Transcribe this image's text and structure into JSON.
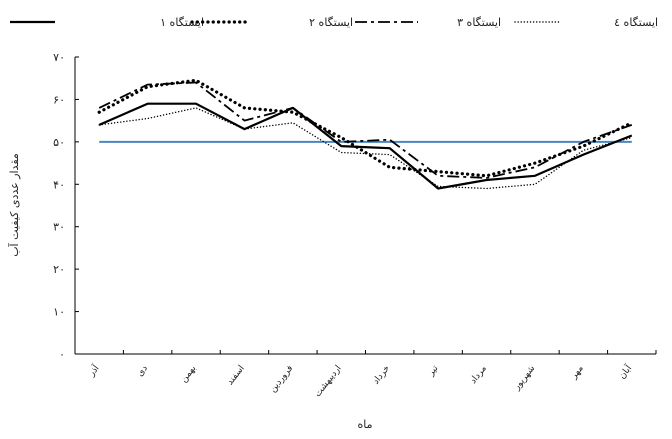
{
  "chart_data": {
    "type": "line",
    "xlabel": "ماه",
    "ylabel": "مقدار عددی کیفیت آب",
    "ylim": [
      0,
      70
    ],
    "yticks": [
      0,
      10,
      20,
      30,
      40,
      50,
      60,
      70
    ],
    "ytick_labels": [
      "۰",
      "۱۰",
      "۲۰",
      "۳۰",
      "۴۰",
      "۵۰",
      "۶۰",
      "۷۰"
    ],
    "categories": [
      "آذر",
      "دی",
      "بهمن",
      "اسفند",
      "فروردین",
      "اردیبهشت",
      "خرداد",
      "تیر",
      "مرداد",
      "شهریور",
      "مهر",
      "آبان"
    ],
    "reference_line": {
      "value": 50,
      "color": "#4a86c5"
    },
    "legend_position": "top",
    "grid": false,
    "series": [
      {
        "name": "ایستگاه ۱",
        "style": "solid",
        "color": "#000000",
        "values": [
          54,
          59,
          59,
          53,
          58,
          49,
          48.5,
          39,
          41,
          42,
          47,
          51.5
        ]
      },
      {
        "name": "ایستگاه ۲",
        "style": "dotted-bold",
        "color": "#000000",
        "values": [
          57,
          63,
          64.5,
          58,
          57,
          51,
          44,
          43,
          42,
          45,
          49,
          54.5
        ]
      },
      {
        "name": "ایستگاه ۳",
        "style": "dashdot",
        "color": "#000000",
        "values": [
          58,
          63.5,
          64,
          55,
          58,
          50,
          50.5,
          42,
          41.5,
          44,
          50,
          54
        ]
      },
      {
        "name": "ایستگاه ٤",
        "style": "dotted-thin",
        "color": "#000000",
        "values": [
          54,
          55.5,
          58,
          53,
          54.5,
          47.5,
          47,
          39.5,
          39,
          40,
          48,
          51
        ]
      }
    ]
  }
}
